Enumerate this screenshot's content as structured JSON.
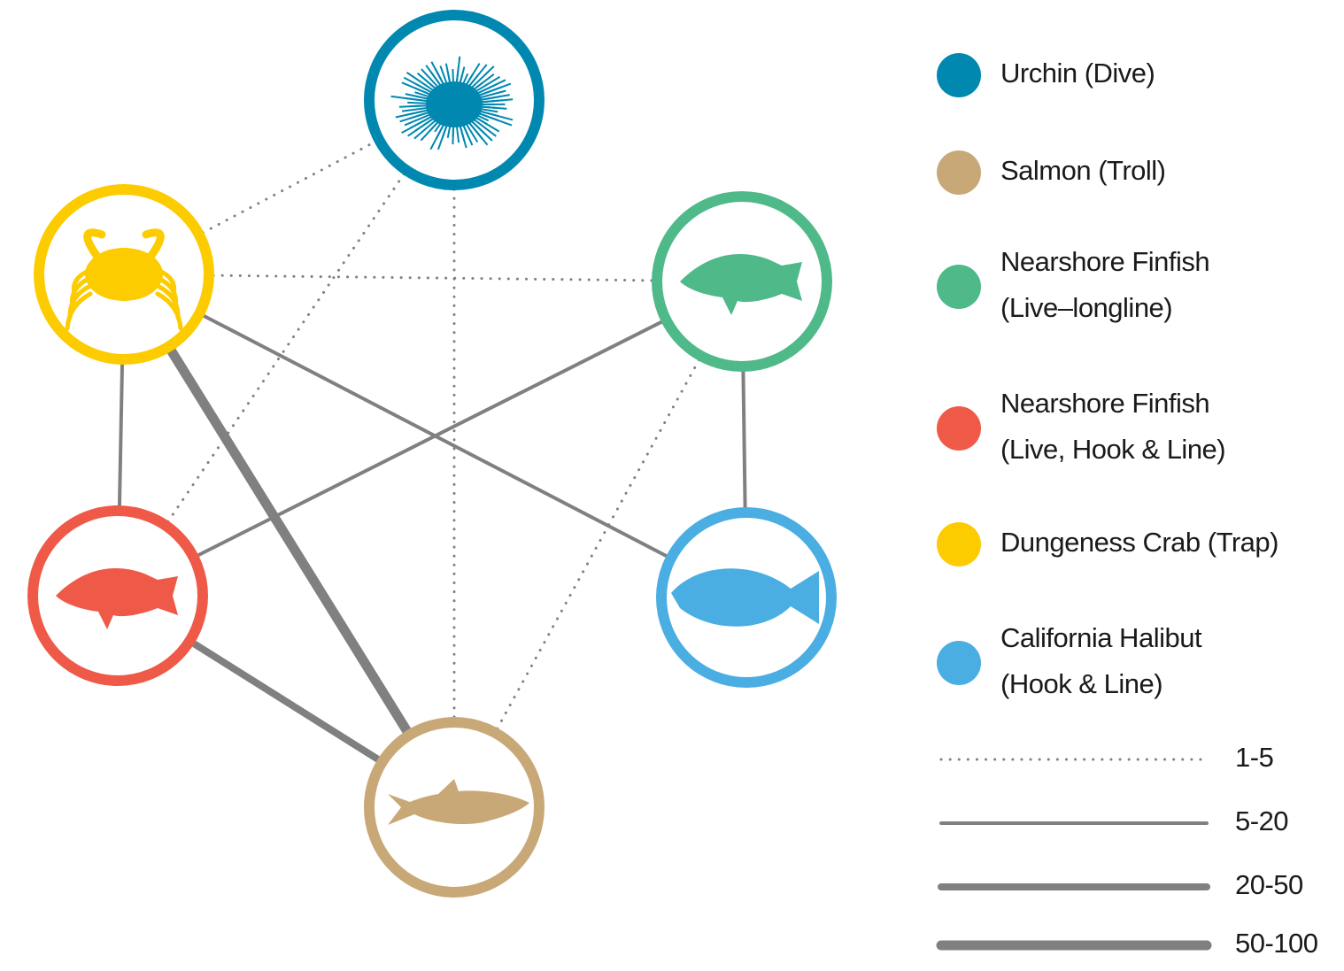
{
  "nodes": [
    {
      "label": [
        "Urchin (Dive)"
      ],
      "color": "#0088b0",
      "icon": "urchin"
    },
    {
      "label": [
        "Salmon (Troll)"
      ],
      "color": "#c9a878",
      "icon": "salmon"
    },
    {
      "label": [
        "Nearshore Finfish",
        "(Live–longline)"
      ],
      "color": "#4fb98a",
      "icon": "rockfish"
    },
    {
      "label": [
        "Nearshore Finfish",
        "(Live, Hook & Line)"
      ],
      "color": "#ef5a48",
      "icon": "rockfish"
    },
    {
      "label": [
        "Dungeness Crab (Trap)"
      ],
      "color": "#fccc00",
      "icon": "crab"
    },
    {
      "label": [
        "California Halibut",
        "(Hook & Line)"
      ],
      "color": "#4aaee2",
      "icon": "halibut"
    }
  ],
  "line_styles": [
    {
      "label": "1-5",
      "width": 3,
      "dashed": true
    },
    {
      "label": "5-20",
      "width": 4,
      "dashed": false
    },
    {
      "label": "20-50",
      "width": 8,
      "dashed": false
    },
    {
      "label": "50-100",
      "width": 11,
      "dashed": false
    }
  ],
  "edges": [
    {
      "from": 4,
      "to": 0,
      "style": 0
    },
    {
      "from": 4,
      "to": 2,
      "style": 0
    },
    {
      "from": 0,
      "to": 3,
      "style": 0
    },
    {
      "from": 0,
      "to": 1,
      "style": 0
    },
    {
      "from": 2,
      "to": 1,
      "style": 0
    },
    {
      "from": 3,
      "to": 2,
      "style": 1
    },
    {
      "from": 4,
      "to": 5,
      "style": 1
    },
    {
      "from": 4,
      "to": 3,
      "style": 1
    },
    {
      "from": 2,
      "to": 5,
      "style": 1
    },
    {
      "from": 3,
      "to": 1,
      "style": 2
    },
    {
      "from": 4,
      "to": 1,
      "style": 3
    }
  ]
}
